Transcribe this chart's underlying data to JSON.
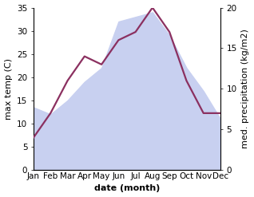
{
  "months": [
    "Jan",
    "Feb",
    "Mar",
    "Apr",
    "May",
    "Jun",
    "Jul",
    "Aug",
    "Sep",
    "Oct",
    "Nov",
    "Dec"
  ],
  "max_temp": [
    13.5,
    12.0,
    15.0,
    19.0,
    22.0,
    32.0,
    33.0,
    34.0,
    29.0,
    22.0,
    17.0,
    11.0
  ],
  "precipitation": [
    4.0,
    7.0,
    11.0,
    14.0,
    13.0,
    16.0,
    17.0,
    20.0,
    17.0,
    11.0,
    7.0,
    7.0
  ],
  "temp_fill_color": "#c8d0f0",
  "precip_color": "#8b3060",
  "ylabel_left": "max temp (C)",
  "ylabel_right": "med. precipitation (kg/m2)",
  "xlabel": "date (month)",
  "ylim_left": [
    0,
    35
  ],
  "ylim_right": [
    0,
    20
  ],
  "yticks_left": [
    0,
    5,
    10,
    15,
    20,
    25,
    30,
    35
  ],
  "yticks_right": [
    0,
    5,
    10,
    15,
    20
  ],
  "background_color": "#ffffff",
  "label_fontsize": 8,
  "tick_fontsize": 7.5
}
